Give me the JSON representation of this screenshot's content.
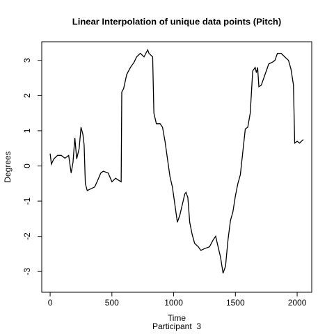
{
  "chart_data": {
    "type": "line",
    "title": "Linear Interpolation of unique data points (Pitch)",
    "x_label": "Time",
    "subtitle": "Participant  3",
    "y_label": "Degrees",
    "xlim": [
      -68,
      2118
    ],
    "ylim": [
      -3.59,
      3.53
    ],
    "xticks": [
      0,
      500,
      1000,
      1500,
      2000
    ],
    "yticks": [
      -3,
      -2,
      -1,
      0,
      1,
      2,
      3
    ],
    "x": [
      0,
      10,
      30,
      60,
      90,
      120,
      150,
      170,
      185,
      200,
      215,
      235,
      250,
      265,
      275,
      285,
      300,
      330,
      360,
      380,
      410,
      430,
      470,
      500,
      530,
      560,
      575,
      580,
      595,
      620,
      650,
      680,
      700,
      730,
      760,
      790,
      800,
      830,
      840,
      860,
      890,
      910,
      930,
      950,
      970,
      990,
      1010,
      1030,
      1050,
      1070,
      1090,
      1100,
      1115,
      1130,
      1150,
      1170,
      1200,
      1220,
      1250,
      1290,
      1320,
      1340,
      1360,
      1380,
      1400,
      1420,
      1440,
      1460,
      1480,
      1500,
      1520,
      1540,
      1560,
      1580,
      1600,
      1620,
      1640,
      1660,
      1670,
      1680,
      1690,
      1710,
      1740,
      1770,
      1800,
      1820,
      1840,
      1870,
      1900,
      1930,
      1950,
      1970,
      1980,
      2000,
      2020,
      2040,
      2050
    ],
    "series": [
      {
        "name": "Pitch",
        "color": "#000000",
        "values": [
          0.35,
          0.05,
          0.2,
          0.3,
          0.3,
          0.22,
          0.3,
          -0.2,
          0.1,
          0.8,
          0.2,
          0.5,
          1.1,
          0.9,
          0.6,
          -0.5,
          -0.7,
          -0.65,
          -0.6,
          -0.45,
          -0.2,
          -0.15,
          -0.2,
          -0.45,
          -0.35,
          -0.42,
          -0.45,
          2.1,
          2.2,
          2.6,
          2.8,
          2.95,
          3.1,
          3.2,
          3.1,
          3.3,
          3.2,
          3.1,
          1.5,
          1.2,
          1.2,
          1.1,
          0.7,
          0.2,
          -0.3,
          -0.6,
          -1.1,
          -1.6,
          -1.4,
          -1.1,
          -0.8,
          -0.75,
          -0.9,
          -1.6,
          -1.95,
          -2.2,
          -2.3,
          -2.4,
          -2.35,
          -2.3,
          -2.1,
          -2.0,
          -2.3,
          -2.6,
          -3.05,
          -2.85,
          -2.1,
          -1.55,
          -1.3,
          -0.85,
          -0.5,
          -0.25,
          0.4,
          1.05,
          1.1,
          1.5,
          2.7,
          2.8,
          2.65,
          2.8,
          2.25,
          2.3,
          2.6,
          2.9,
          2.95,
          3.0,
          3.2,
          3.2,
          3.1,
          3.0,
          2.75,
          2.3,
          0.65,
          0.7,
          0.65,
          0.72,
          0.75
        ]
      }
    ]
  }
}
